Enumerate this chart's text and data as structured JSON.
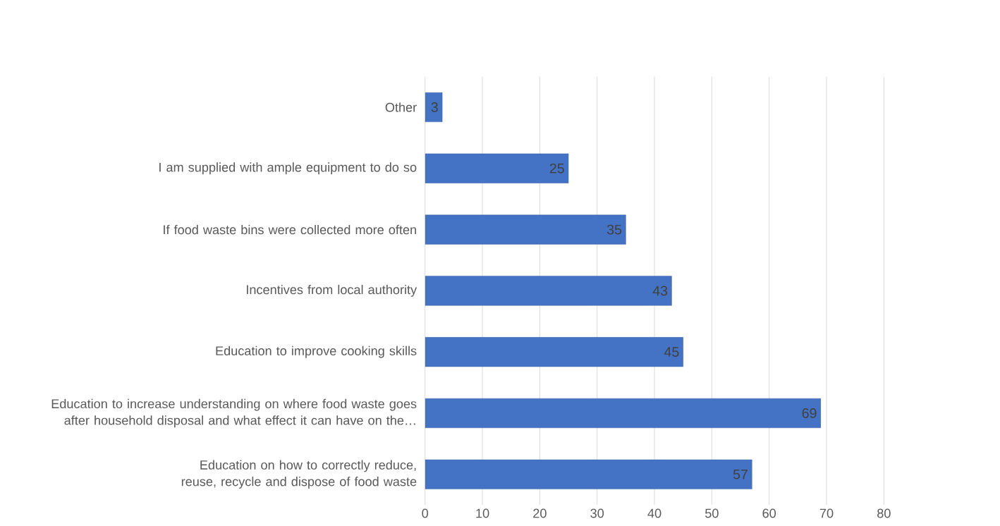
{
  "chart_data": {
    "type": "bar",
    "orientation": "horizontal",
    "categories": [
      "Other",
      "I am supplied with ample equipment to do so",
      "If food waste bins were collected more often",
      "Incentives from local authority",
      "Education to improve cooking skills",
      "Education to increase understanding on where food waste goes after household disposal and what effect it can have on the…",
      "Education on how to correctly reduce, reuse, recycle and dispose of food waste"
    ],
    "values": [
      3,
      25,
      35,
      43,
      45,
      69,
      57
    ],
    "color": "#4472c4",
    "xlim": [
      0,
      80
    ],
    "xticks": [
      0,
      10,
      20,
      30,
      40,
      50,
      60,
      70,
      80
    ],
    "grid": "x",
    "data_labels": true
  }
}
